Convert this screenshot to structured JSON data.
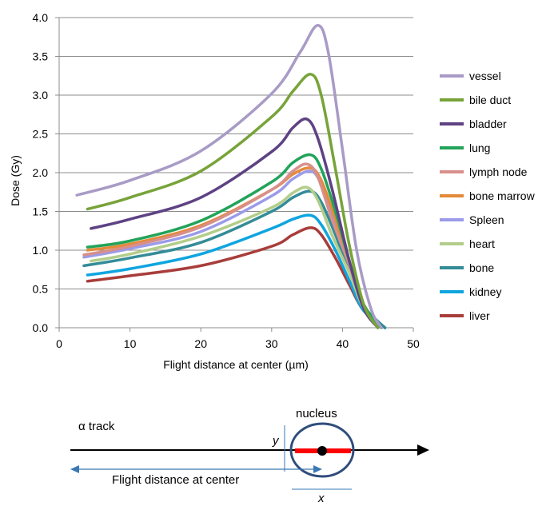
{
  "chart_data": {
    "type": "line",
    "xlabel": "Flight distance at center (µm)",
    "ylabel": "Dose (Gy)",
    "xlim": [
      0,
      50
    ],
    "ylim": [
      0,
      4
    ],
    "x_ticks": [
      "0",
      "10",
      "20",
      "30",
      "40",
      "50"
    ],
    "y_ticks": [
      "0.0",
      "0.5",
      "1.0",
      "1.5",
      "2.0",
      "2.5",
      "3.0",
      "3.5",
      "4.0"
    ],
    "grid": "horizontal",
    "legend_position": "right",
    "series": [
      {
        "name": "vessel",
        "color": "#A89BC6",
        "x": [
          2.5,
          10,
          20,
          30,
          34,
          36.5,
          38,
          40,
          42,
          44,
          45.5
        ],
        "y": [
          1.71,
          1.9,
          2.28,
          3.02,
          3.55,
          3.9,
          3.55,
          2.3,
          1.0,
          0.25,
          0.0
        ]
      },
      {
        "name": "bile duct",
        "color": "#77A339",
        "x": [
          4,
          10,
          20,
          30,
          33,
          35.5,
          37,
          39,
          41,
          43,
          45
        ],
        "y": [
          1.53,
          1.68,
          2.02,
          2.72,
          3.05,
          3.27,
          3.0,
          2.05,
          1.05,
          0.3,
          0.0
        ]
      },
      {
        "name": "bladder",
        "color": "#5E4283",
        "x": [
          4.5,
          10,
          20,
          30,
          33,
          35,
          36.5,
          38.5,
          41,
          43,
          45
        ],
        "y": [
          1.28,
          1.4,
          1.68,
          2.27,
          2.58,
          2.69,
          2.45,
          1.8,
          0.85,
          0.25,
          0.0
        ]
      },
      {
        "name": "lung",
        "color": "#22A35A",
        "x": [
          4,
          10,
          20,
          30,
          33,
          35.5,
          37,
          39,
          41,
          43,
          45.5
        ],
        "y": [
          1.04,
          1.12,
          1.38,
          1.88,
          2.13,
          2.23,
          2.05,
          1.5,
          0.85,
          0.3,
          0.0
        ]
      },
      {
        "name": "lymph node",
        "color": "#D88F8B",
        "x": [
          3.5,
          10,
          20,
          30,
          33,
          35,
          36.5,
          38.5,
          41,
          43,
          45
        ],
        "y": [
          0.94,
          1.05,
          1.3,
          1.78,
          2.02,
          2.11,
          1.95,
          1.4,
          0.8,
          0.28,
          0.0
        ]
      },
      {
        "name": "bone marrow",
        "color": "#E48A3A",
        "x": [
          4,
          10,
          20,
          30,
          33,
          35.5,
          37,
          39,
          41,
          43,
          45.5
        ],
        "y": [
          1.0,
          1.08,
          1.32,
          1.78,
          1.98,
          2.06,
          1.9,
          1.4,
          0.82,
          0.3,
          0.0
        ]
      },
      {
        "name": "Spleen",
        "color": "#9B9BEA",
        "x": [
          3.5,
          10,
          20,
          30,
          33,
          35.5,
          37,
          39,
          41,
          43,
          45.5
        ],
        "y": [
          0.91,
          1.02,
          1.24,
          1.7,
          1.92,
          2.02,
          1.85,
          1.35,
          0.8,
          0.28,
          0.0
        ]
      },
      {
        "name": "heart",
        "color": "#B3CD8B",
        "x": [
          4.5,
          10,
          20,
          30,
          33,
          35,
          36.5,
          38.5,
          41,
          43,
          45.5
        ],
        "y": [
          0.86,
          0.95,
          1.18,
          1.55,
          1.74,
          1.81,
          1.65,
          1.2,
          0.7,
          0.25,
          0.0
        ]
      },
      {
        "name": "bone",
        "color": "#338C97",
        "x": [
          3.5,
          10,
          20,
          30,
          33,
          35.5,
          37,
          39,
          41,
          43,
          46
        ],
        "y": [
          0.8,
          0.9,
          1.1,
          1.5,
          1.68,
          1.76,
          1.62,
          1.2,
          0.72,
          0.28,
          0.0
        ]
      },
      {
        "name": "kidney",
        "color": "#0FA5DF",
        "x": [
          4,
          10,
          20,
          30,
          33,
          35.5,
          37,
          39,
          41,
          43,
          46
        ],
        "y": [
          0.68,
          0.76,
          0.95,
          1.28,
          1.4,
          1.45,
          1.33,
          1.0,
          0.6,
          0.22,
          0.0
        ]
      },
      {
        "name": "liver",
        "color": "#A83D3A",
        "x": [
          4,
          10,
          20,
          30,
          33,
          35.5,
          37,
          39,
          41,
          43,
          46
        ],
        "y": [
          0.6,
          0.67,
          0.8,
          1.05,
          1.2,
          1.29,
          1.2,
          0.9,
          0.55,
          0.22,
          0.0
        ]
      }
    ]
  },
  "diagram": {
    "alpha_track_label": "α track",
    "nucleus_label": "nucleus",
    "flight_distance_label": "Flight distance at center",
    "y_dim_label": "y",
    "x_dim_label": "x",
    "colors": {
      "nucleus_outline": "#2E4D7B",
      "track_segment": "#FF0000",
      "dimension_line": "#3A78B5"
    }
  }
}
